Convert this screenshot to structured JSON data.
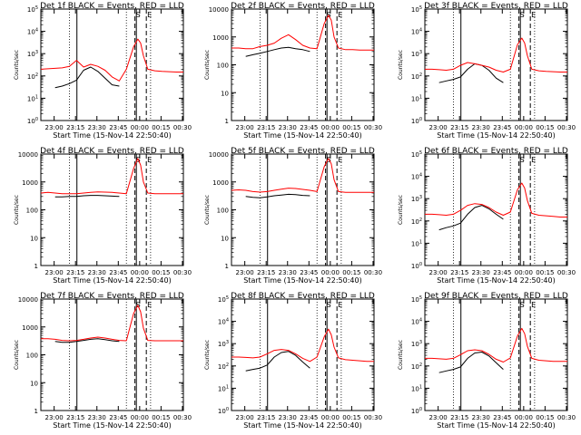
{
  "figure": {
    "xlabel": "Start Time (15-Nov-14 22:50:40)",
    "ylabel": "Counts/sec",
    "xticks": [
      "23:00",
      "23:15",
      "23:30",
      "23:45",
      "00:00",
      "00:15",
      "00:30"
    ],
    "markers": [
      "S",
      "E"
    ],
    "series_colors": {
      "events": "#000000",
      "lld": "#ff0000"
    }
  },
  "chart_data": [
    {
      "type": "line",
      "title": "Det 1f BLACK = Events, RED = LLD",
      "ylabel": "Counts/sec",
      "xlabel": "Start Time (15-Nov-14 22:50:40)",
      "yscale": "log",
      "ylim": [
        1,
        100000
      ],
      "ytick_style": "power",
      "yticks": [
        1,
        10,
        100,
        1000,
        10000,
        100000
      ],
      "x_minutes": [
        0,
        5,
        10,
        15,
        20,
        25,
        30,
        35,
        40,
        45,
        50,
        55,
        60,
        65,
        68,
        70,
        72,
        75,
        80,
        85,
        90,
        95,
        100
      ],
      "series": [
        {
          "name": "BLACK = Events",
          "color": "#000000",
          "values": [
            null,
            null,
            30,
            35,
            45,
            65,
            180,
            250,
            160,
            80,
            40,
            35,
            null,
            null,
            null,
            null,
            null,
            null,
            null,
            null,
            null,
            null,
            null
          ]
        },
        {
          "name": "RED = LLD",
          "color": "#ff0000",
          "values": [
            200,
            210,
            220,
            230,
            270,
            500,
            250,
            330,
            270,
            180,
            90,
            60,
            200,
            2000,
            4500,
            3000,
            800,
            200,
            170,
            160,
            155,
            150,
            150
          ]
        }
      ],
      "vlines": {
        "solid": [
          25.3,
          67
        ],
        "dotted": [
          20,
          60,
          77
        ],
        "dashed": [
          66,
          74
        ],
        "label_S": 66,
        "label_E": 74
      }
    },
    {
      "type": "line",
      "title": "Det 2f BLACK = Events, RED = LLD",
      "ylabel": "Counts/sec",
      "xlabel": "Start Time (15-Nov-14 22:50:40)",
      "yscale": "log",
      "ylim": [
        1,
        10000
      ],
      "ytick_style": "plain",
      "yticks": [
        1,
        10,
        100,
        1000,
        10000
      ],
      "x_minutes": [
        0,
        5,
        10,
        15,
        20,
        25,
        30,
        35,
        40,
        45,
        50,
        55,
        60,
        65,
        68,
        70,
        72,
        75,
        80,
        85,
        90,
        95,
        100
      ],
      "series": [
        {
          "name": "BLACK = Events",
          "color": "#000000",
          "values": [
            null,
            null,
            200,
            230,
            260,
            300,
            350,
            400,
            420,
            380,
            350,
            300,
            null,
            null,
            null,
            null,
            null,
            null,
            null,
            null,
            null,
            null,
            null
          ]
        },
        {
          "name": "RED = LLD",
          "color": "#ff0000",
          "values": [
            400,
            400,
            380,
            380,
            450,
            500,
            600,
            900,
            1200,
            800,
            500,
            400,
            380,
            3000,
            6000,
            4000,
            1000,
            400,
            350,
            350,
            340,
            340,
            340
          ]
        }
      ],
      "vlines": {
        "solid": [
          25.3,
          67
        ],
        "dotted": [
          20,
          60,
          77
        ],
        "dashed": [
          66,
          74
        ],
        "label_S": 66,
        "label_E": 74
      }
    },
    {
      "type": "line",
      "title": "Det 3f BLACK = Events, RED = LLD",
      "ylabel": "Counts/sec",
      "xlabel": "Start Time (15-Nov-14 22:50:40)",
      "yscale": "log",
      "ylim": [
        1,
        100000
      ],
      "ytick_style": "power",
      "yticks": [
        1,
        10,
        100,
        1000,
        10000,
        100000
      ],
      "x_minutes": [
        0,
        5,
        10,
        15,
        20,
        25,
        30,
        35,
        40,
        45,
        50,
        55,
        60,
        65,
        68,
        70,
        72,
        75,
        80,
        85,
        90,
        95,
        100
      ],
      "series": [
        {
          "name": "BLACK = Events",
          "color": "#000000",
          "values": [
            null,
            null,
            50,
            60,
            70,
            90,
            200,
            350,
            300,
            180,
            80,
            50,
            null,
            null,
            null,
            null,
            null,
            null,
            null,
            null,
            null,
            null,
            null
          ]
        },
        {
          "name": "RED = LLD",
          "color": "#ff0000",
          "values": [
            200,
            200,
            190,
            180,
            200,
            300,
            400,
            350,
            300,
            250,
            180,
            150,
            200,
            2500,
            5000,
            3000,
            800,
            200,
            170,
            160,
            155,
            150,
            150
          ]
        }
      ],
      "vlines": {
        "solid": [
          25.3,
          67
        ],
        "dotted": [
          20,
          60,
          77
        ],
        "dashed": [
          66,
          74
        ],
        "label_S": 66,
        "label_E": 74
      }
    },
    {
      "type": "line",
      "title": "Det 4f BLACK = Events, RED = LLD",
      "ylabel": "Counts/sec",
      "xlabel": "Start Time (15-Nov-14 22:50:40)",
      "yscale": "log",
      "ylim": [
        1,
        10000
      ],
      "ytick_style": "plain",
      "yticks": [
        1,
        10,
        100,
        1000,
        10000
      ],
      "x_minutes": [
        0,
        5,
        10,
        15,
        20,
        25,
        30,
        35,
        40,
        45,
        50,
        55,
        60,
        65,
        68,
        70,
        72,
        75,
        80,
        85,
        90,
        95,
        100
      ],
      "series": [
        {
          "name": "BLACK = Events",
          "color": "#000000",
          "values": [
            null,
            null,
            290,
            290,
            300,
            300,
            320,
            330,
            330,
            320,
            310,
            300,
            null,
            null,
            null,
            null,
            null,
            null,
            null,
            null,
            null,
            null,
            null
          ]
        },
        {
          "name": "RED = LLD",
          "color": "#ff0000",
          "values": [
            400,
            420,
            400,
            380,
            380,
            380,
            400,
            420,
            440,
            430,
            420,
            400,
            380,
            3000,
            7000,
            4000,
            1000,
            400,
            380,
            380,
            380,
            380,
            380
          ]
        }
      ],
      "vlines": {
        "solid": [
          25.3,
          67
        ],
        "dotted": [
          20,
          60,
          77
        ],
        "dashed": [
          66,
          74
        ],
        "label_S": 66,
        "label_E": 74
      }
    },
    {
      "type": "line",
      "title": "Det 5f BLACK = Events, RED = LLD",
      "ylabel": "Counts/sec",
      "xlabel": "Start Time (15-Nov-14 22:50:40)",
      "yscale": "log",
      "ylim": [
        1,
        10000
      ],
      "ytick_style": "plain",
      "yticks": [
        1,
        10,
        100,
        1000,
        10000
      ],
      "x_minutes": [
        0,
        5,
        10,
        15,
        20,
        25,
        30,
        35,
        40,
        45,
        50,
        55,
        60,
        65,
        68,
        70,
        72,
        75,
        80,
        85,
        90,
        95,
        100
      ],
      "series": [
        {
          "name": "BLACK = Events",
          "color": "#000000",
          "values": [
            null,
            null,
            300,
            280,
            270,
            290,
            320,
            340,
            360,
            350,
            330,
            320,
            null,
            null,
            null,
            null,
            null,
            null,
            null,
            null,
            null,
            null,
            null
          ]
        },
        {
          "name": "RED = LLD",
          "color": "#ff0000",
          "values": [
            500,
            520,
            500,
            450,
            430,
            450,
            500,
            550,
            600,
            580,
            540,
            500,
            450,
            3500,
            7000,
            4500,
            1200,
            450,
            420,
            420,
            420,
            420,
            420
          ]
        }
      ],
      "vlines": {
        "solid": [
          25.3,
          67
        ],
        "dotted": [
          20,
          60,
          77
        ],
        "dashed": [
          66,
          74
        ],
        "label_S": 66,
        "label_E": 74
      }
    },
    {
      "type": "line",
      "title": "Det 6f BLACK = Events, RED = LLD",
      "ylabel": "Counts/sec",
      "xlabel": "Start Time (15-Nov-14 22:50:40)",
      "yscale": "log",
      "ylim": [
        1,
        100000
      ],
      "ytick_style": "power",
      "yticks": [
        1,
        10,
        100,
        1000,
        10000,
        100000
      ],
      "x_minutes": [
        0,
        5,
        10,
        15,
        20,
        25,
        30,
        35,
        40,
        45,
        50,
        55,
        60,
        65,
        68,
        70,
        72,
        75,
        80,
        85,
        90,
        95,
        100
      ],
      "series": [
        {
          "name": "BLACK = Events",
          "color": "#000000",
          "values": [
            null,
            null,
            40,
            50,
            60,
            80,
            200,
            400,
            500,
            350,
            200,
            120,
            null,
            null,
            null,
            null,
            null,
            null,
            null,
            null,
            null,
            null,
            null
          ]
        },
        {
          "name": "RED = LLD",
          "color": "#ff0000",
          "values": [
            200,
            200,
            190,
            180,
            200,
            300,
            500,
            600,
            550,
            400,
            250,
            180,
            250,
            2500,
            5000,
            3000,
            800,
            220,
            180,
            170,
            160,
            150,
            150
          ]
        }
      ],
      "vlines": {
        "solid": [
          25.3,
          67
        ],
        "dotted": [
          20,
          60,
          77
        ],
        "dashed": [
          66,
          74
        ],
        "label_S": 66,
        "label_E": 74
      }
    },
    {
      "type": "line",
      "title": "Det 7f BLACK = Events, RED = LLD",
      "ylabel": "Counts/sec",
      "xlabel": "Start Time (15-Nov-14 22:50:40)",
      "yscale": "log",
      "ylim": [
        1,
        10000
      ],
      "ytick_style": "plain",
      "yticks": [
        1,
        10,
        100,
        1000,
        10000
      ],
      "x_minutes": [
        0,
        5,
        10,
        15,
        20,
        25,
        30,
        35,
        40,
        45,
        50,
        55,
        60,
        65,
        68,
        70,
        72,
        75,
        80,
        85,
        90,
        95,
        100
      ],
      "series": [
        {
          "name": "BLACK = Events",
          "color": "#000000",
          "values": [
            null,
            null,
            300,
            280,
            280,
            300,
            330,
            360,
            380,
            350,
            320,
            300,
            null,
            null,
            null,
            null,
            null,
            null,
            null,
            null,
            null,
            null,
            null
          ]
        },
        {
          "name": "RED = LLD",
          "color": "#ff0000",
          "values": [
            380,
            380,
            360,
            330,
            320,
            330,
            360,
            400,
            430,
            400,
            360,
            330,
            320,
            3000,
            6000,
            3500,
            900,
            330,
            320,
            320,
            320,
            320,
            320
          ]
        }
      ],
      "vlines": {
        "solid": [
          25.3,
          67
        ],
        "dotted": [
          20,
          60,
          77
        ],
        "dashed": [
          66,
          74
        ],
        "label_S": 66,
        "label_E": 74
      }
    },
    {
      "type": "line",
      "title": "Det 8f BLACK = Events, RED = LLD",
      "ylabel": "Counts/sec",
      "xlabel": "Start Time (15-Nov-14 22:50:40)",
      "yscale": "log",
      "ylim": [
        1,
        100000
      ],
      "ytick_style": "power",
      "yticks": [
        1,
        10,
        100,
        1000,
        10000,
        100000
      ],
      "x_minutes": [
        0,
        5,
        10,
        15,
        20,
        25,
        30,
        35,
        40,
        45,
        50,
        55,
        60,
        65,
        68,
        70,
        72,
        75,
        80,
        85,
        90,
        95,
        100
      ],
      "series": [
        {
          "name": "BLACK = Events",
          "color": "#000000",
          "values": [
            null,
            null,
            60,
            70,
            80,
            110,
            250,
            400,
            450,
            300,
            150,
            80,
            null,
            null,
            null,
            null,
            null,
            null,
            null,
            null,
            null,
            null,
            null
          ]
        },
        {
          "name": "RED = LLD",
          "color": "#ff0000",
          "values": [
            250,
            250,
            240,
            230,
            250,
            350,
            500,
            550,
            500,
            350,
            220,
            160,
            250,
            2000,
            4500,
            2500,
            700,
            230,
            190,
            180,
            170,
            160,
            160
          ]
        }
      ],
      "vlines": {
        "solid": [
          25.3,
          67
        ],
        "dotted": [
          20,
          60,
          77
        ],
        "dashed": [
          66,
          74
        ],
        "label_S": 66,
        "label_E": 74
      }
    },
    {
      "type": "line",
      "title": "Det 9f BLACK = Events, RED = LLD",
      "ylabel": "Counts/sec",
      "xlabel": "Start Time (15-Nov-14 22:50:40)",
      "yscale": "log",
      "ylim": [
        1,
        100000
      ],
      "ytick_style": "power",
      "yticks": [
        1,
        10,
        100,
        1000,
        10000,
        100000
      ],
      "x_minutes": [
        0,
        5,
        10,
        15,
        20,
        25,
        30,
        35,
        40,
        45,
        50,
        55,
        60,
        65,
        68,
        70,
        72,
        75,
        80,
        85,
        90,
        95,
        100
      ],
      "series": [
        {
          "name": "BLACK = Events",
          "color": "#000000",
          "values": [
            null,
            null,
            50,
            60,
            70,
            90,
            220,
            380,
            420,
            280,
            140,
            70,
            null,
            null,
            null,
            null,
            null,
            null,
            null,
            null,
            null,
            null,
            null
          ]
        },
        {
          "name": "RED = LLD",
          "color": "#ff0000",
          "values": [
            220,
            220,
            210,
            200,
            220,
            320,
            480,
            530,
            480,
            330,
            200,
            150,
            230,
            2200,
            4800,
            2800,
            750,
            220,
            180,
            170,
            160,
            160,
            160
          ]
        }
      ],
      "vlines": {
        "solid": [
          25.3,
          67
        ],
        "dotted": [
          20,
          60,
          77
        ],
        "dashed": [
          66,
          74
        ],
        "label_S": 66,
        "label_E": 74
      }
    }
  ]
}
